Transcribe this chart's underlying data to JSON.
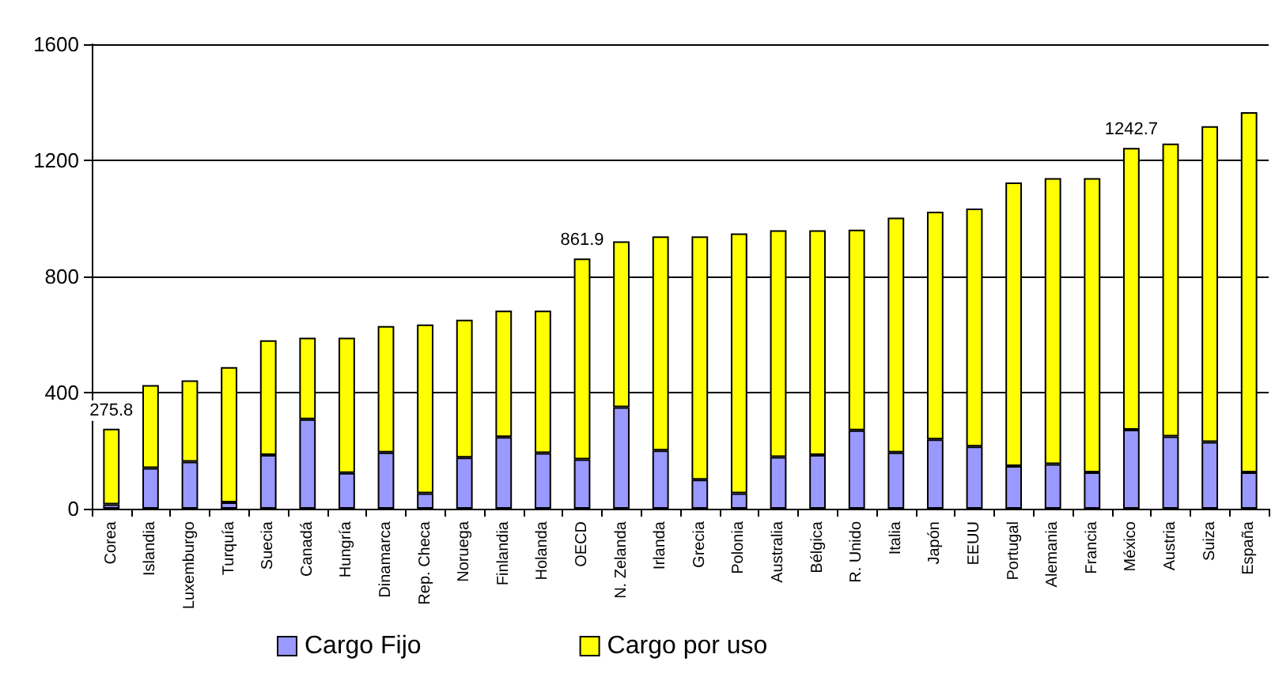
{
  "chart_data": {
    "type": "bar",
    "stacked": true,
    "categories": [
      "Corea",
      "Islandia",
      "Luxemburgo",
      "Turquía",
      "Suecia",
      "Canadá",
      "Hungría",
      "Dinamarca",
      "Rep. Checa",
      "Noruega",
      "Finlandia",
      "Holanda",
      "OECD",
      "N. Zelanda",
      "Irlanda",
      "Grecia",
      "Polonia",
      "Australia",
      "Bélgica",
      "R. Unido",
      "Italia",
      "Japón",
      "EEUU",
      "Portugal",
      "Alemania",
      "Francia",
      "México",
      "Austria",
      "Suiza",
      "España"
    ],
    "series": [
      {
        "name": "Cargo Fijo",
        "color": "#9999ff",
        "values": [
          15,
          140,
          162,
          22,
          185,
          308,
          123,
          194,
          53,
          176,
          247,
          192,
          170,
          350,
          201,
          100,
          53,
          178,
          185,
          270,
          194,
          239,
          214,
          147,
          154,
          125,
          272,
          249,
          230,
          125
        ]
      },
      {
        "name": "Cargo por uso",
        "color": "#ffff00",
        "values": [
          260.8,
          286,
          280,
          466,
          395,
          281,
          466,
          435,
          582,
          475,
          435,
          490,
          691.9,
          571,
          737,
          838,
          895,
          781,
          774,
          691,
          809,
          784,
          820,
          977,
          985,
          1014,
          970.7,
          1009,
          1088,
          1241
        ]
      }
    ],
    "totals": [
      "275.8",
      null,
      null,
      null,
      null,
      null,
      null,
      null,
      null,
      null,
      null,
      null,
      "861.9",
      null,
      null,
      null,
      null,
      null,
      null,
      null,
      null,
      null,
      null,
      null,
      null,
      null,
      "1242.7",
      null,
      null,
      null
    ],
    "ylim": [
      0,
      1600
    ],
    "yticks": [
      0,
      400,
      800,
      1200,
      1600
    ],
    "grid": "y",
    "legend": "bottom"
  }
}
